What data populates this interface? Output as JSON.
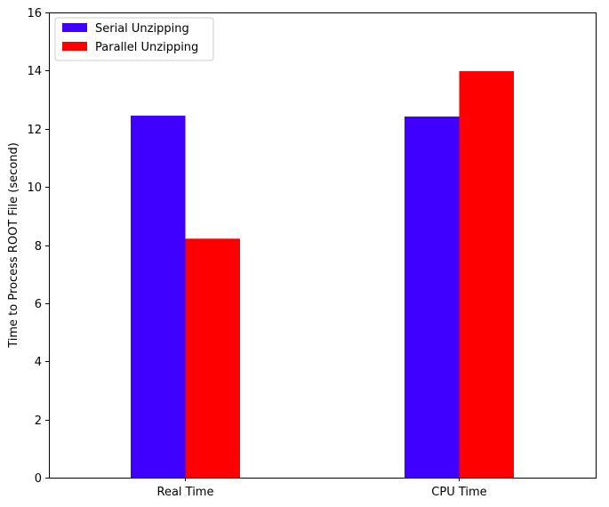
{
  "chart_data": {
    "type": "bar",
    "title": "",
    "xlabel": "",
    "ylabel": "Time to Process ROOT File (second)",
    "ylim": [
      0,
      16
    ],
    "yticks": [
      0,
      2,
      4,
      6,
      8,
      10,
      12,
      14,
      16
    ],
    "categories": [
      "Real Time",
      "CPU Time"
    ],
    "series": [
      {
        "name": "Serial Unzipping",
        "color": "#3f00ff",
        "values": [
          12.45,
          12.42
        ]
      },
      {
        "name": "Parallel Unzipping",
        "color": "#ff0000",
        "values": [
          8.22,
          13.98
        ]
      }
    ],
    "legend": {
      "position": "top-left"
    },
    "grid": false
  }
}
